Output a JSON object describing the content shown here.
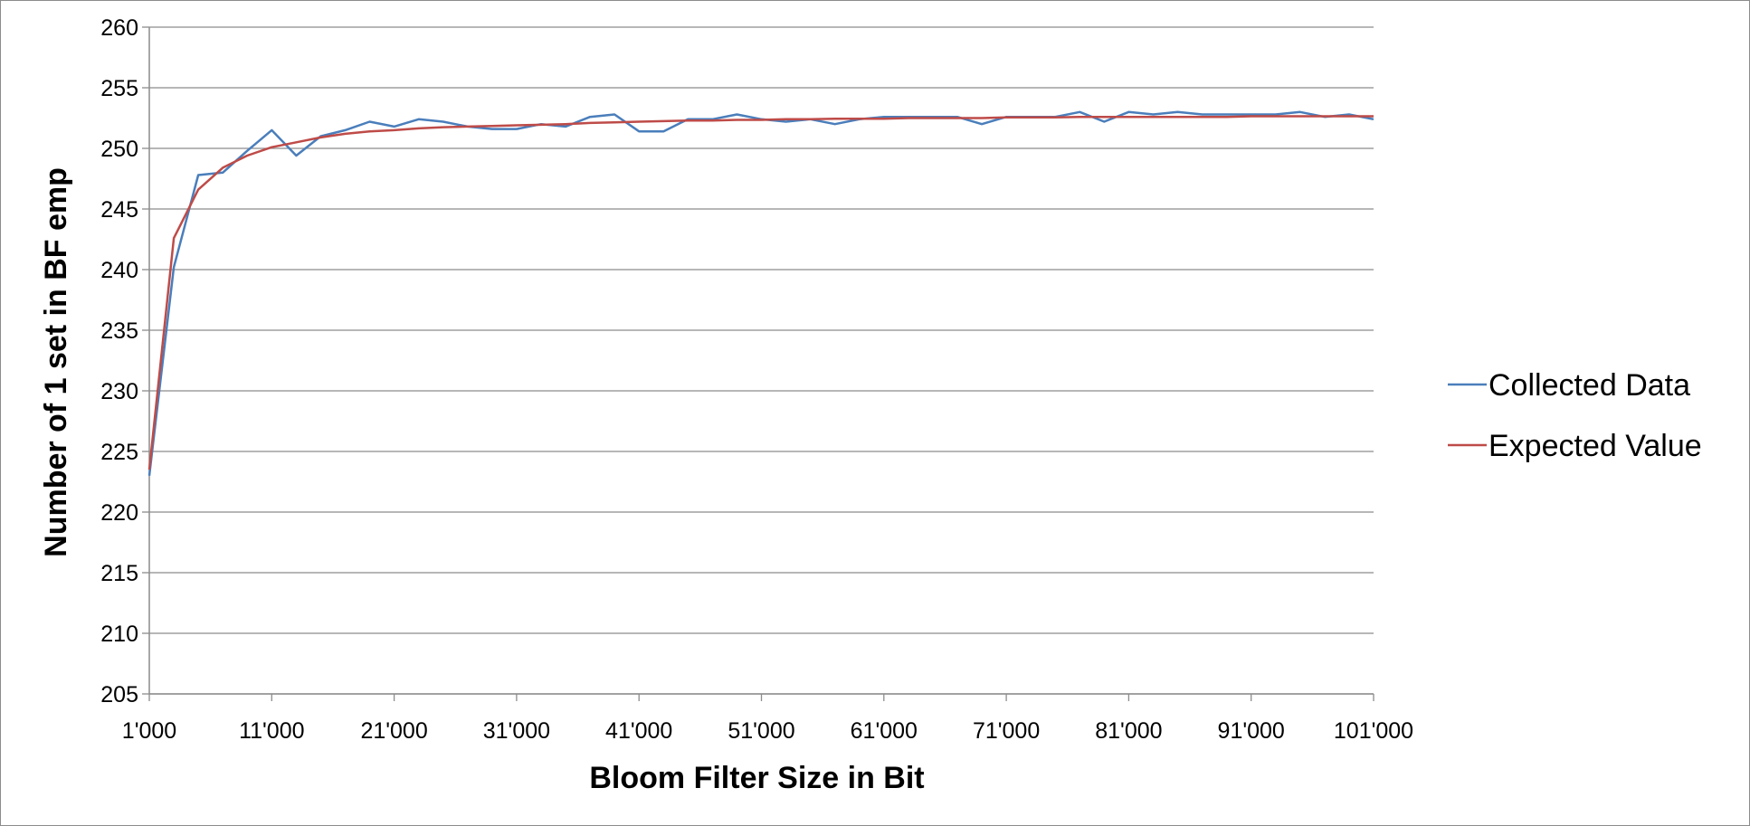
{
  "chart_data": {
    "type": "line",
    "title": "",
    "xlabel": "Bloom Filter Size in Bit",
    "ylabel": "Number of 1 set in BF emp",
    "xlim": [
      1000,
      101000
    ],
    "ylim": [
      205,
      260
    ],
    "x_ticks": [
      1000,
      11000,
      21000,
      31000,
      41000,
      51000,
      61000,
      71000,
      81000,
      91000,
      101000
    ],
    "x_tick_labels": [
      "1'000",
      "11'000",
      "21'000",
      "31'000",
      "41'000",
      "51'000",
      "61'000",
      "71'000",
      "81'000",
      "91'000",
      "101'000"
    ],
    "y_ticks": [
      205,
      210,
      215,
      220,
      225,
      230,
      235,
      240,
      245,
      250,
      255,
      260
    ],
    "y_tick_labels": [
      "205",
      "210",
      "215",
      "220",
      "225",
      "230",
      "235",
      "240",
      "245",
      "250",
      "255",
      "260"
    ],
    "grid": "horizontal",
    "legend_position": "right",
    "series": [
      {
        "name": "Collected Data",
        "color": "#4a7ebb",
        "x": [
          1000,
          3000,
          5000,
          7000,
          9000,
          11000,
          13000,
          15000,
          17000,
          19000,
          21000,
          23000,
          25000,
          27000,
          29000,
          31000,
          33000,
          35000,
          37000,
          39000,
          41000,
          43000,
          45000,
          47000,
          49000,
          51000,
          53000,
          55000,
          57000,
          59000,
          61000,
          63000,
          65000,
          67000,
          69000,
          71000,
          73000,
          75000,
          77000,
          79000,
          81000,
          83000,
          85000,
          87000,
          89000,
          91000,
          93000,
          95000,
          97000,
          99000,
          101000
        ],
        "values": [
          223.0,
          240.2,
          247.8,
          248.0,
          249.8,
          251.5,
          249.4,
          251.0,
          251.5,
          252.2,
          251.8,
          252.4,
          252.2,
          251.8,
          251.6,
          251.6,
          252.0,
          251.8,
          252.6,
          252.8,
          251.4,
          251.4,
          252.4,
          252.4,
          252.8,
          252.4,
          252.2,
          252.4,
          252.0,
          252.4,
          252.6,
          252.6,
          252.6,
          252.6,
          252.0,
          252.6,
          252.6,
          252.6,
          253.0,
          252.2,
          253.0,
          252.8,
          253.0,
          252.8,
          252.8,
          252.8,
          252.8,
          253.0,
          252.6,
          252.8,
          252.4
        ]
      },
      {
        "name": "Expected Value",
        "color": "#be4b48",
        "x": [
          1000,
          3000,
          5000,
          7000,
          9000,
          11000,
          13000,
          15000,
          17000,
          19000,
          21000,
          23000,
          25000,
          27000,
          29000,
          31000,
          33000,
          35000,
          37000,
          39000,
          41000,
          43000,
          45000,
          47000,
          49000,
          51000,
          53000,
          55000,
          57000,
          59000,
          61000,
          63000,
          65000,
          67000,
          69000,
          71000,
          73000,
          75000,
          77000,
          79000,
          81000,
          83000,
          85000,
          87000,
          89000,
          91000,
          93000,
          95000,
          97000,
          99000,
          101000
        ],
        "values": [
          223.5,
          242.6,
          246.6,
          248.4,
          249.4,
          250.1,
          250.5,
          250.9,
          251.2,
          251.4,
          251.5,
          251.65,
          251.75,
          251.8,
          251.85,
          251.9,
          251.95,
          252.0,
          252.1,
          252.15,
          252.2,
          252.25,
          252.3,
          252.3,
          252.35,
          252.35,
          252.4,
          252.4,
          252.45,
          252.45,
          252.45,
          252.5,
          252.5,
          252.5,
          252.5,
          252.55,
          252.55,
          252.55,
          252.6,
          252.6,
          252.6,
          252.6,
          252.6,
          252.6,
          252.6,
          252.65,
          252.65,
          252.65,
          252.65,
          252.65,
          252.65
        ]
      }
    ]
  }
}
